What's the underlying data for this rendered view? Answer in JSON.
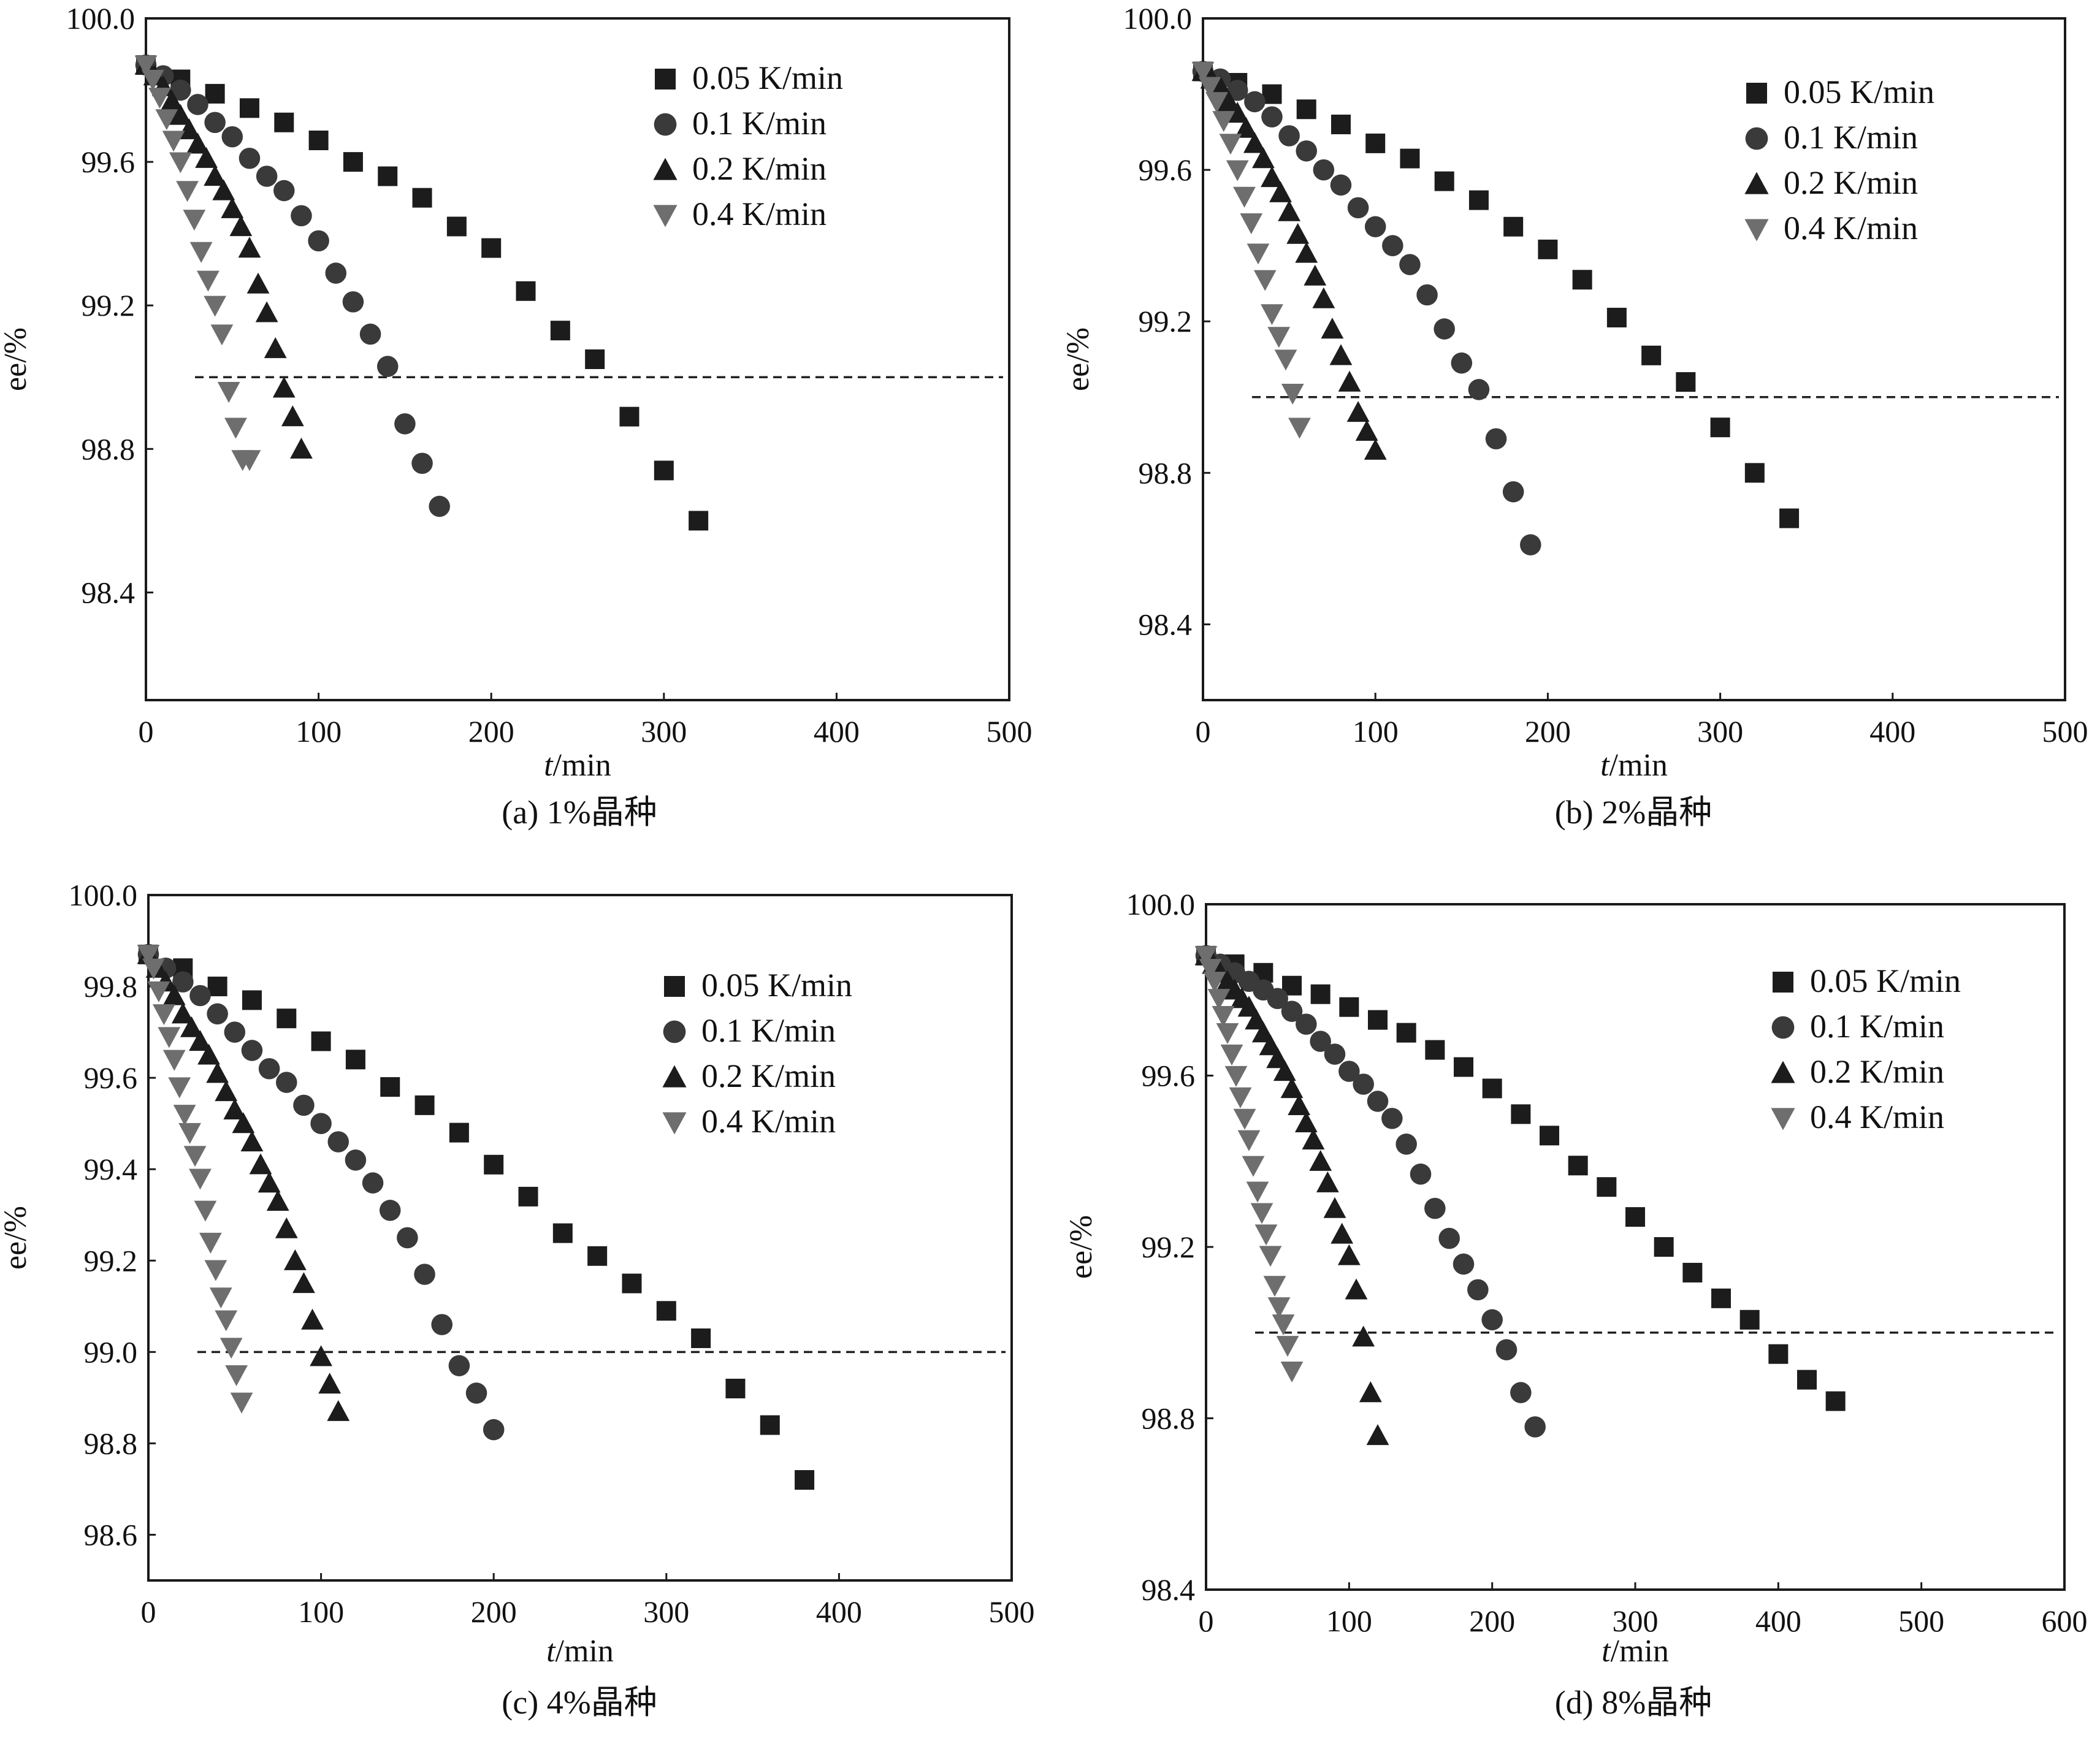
{
  "figure": {
    "xlabel_italic": "t",
    "xlabel_rest": "/min",
    "ylabel": "ee/%",
    "threshold": 99.0,
    "colors": {
      "frame": "#1a1a1a",
      "series": [
        "#1c1c1c",
        "#3a3a3a",
        "#1c1c1c",
        "#6e6e6e"
      ],
      "dashed": "#222222"
    },
    "series_markers": [
      "square-marker",
      "circle-marker",
      "triangle-up-marker",
      "triangle-down-marker"
    ]
  },
  "chart_data": [
    {
      "id": "a",
      "type": "scatter",
      "caption": "(a) 1%晶种",
      "xlabel": "t/min",
      "ylabel": "ee/%",
      "xlim": [
        0,
        500
      ],
      "ylim": [
        98.1,
        100.0
      ],
      "xticks": [
        0,
        100,
        200,
        300,
        400,
        500
      ],
      "yticks": [
        98.4,
        98.8,
        99.2,
        99.6,
        100.0
      ],
      "ytick_labels": [
        "98.4",
        "98.8",
        "99.2",
        "99.6",
        "100.0"
      ],
      "hline": 99.0,
      "legend_position": "top-right",
      "series": [
        {
          "name": "0.05 K/min",
          "marker": "square",
          "x": [
            0,
            20,
            40,
            60,
            80,
            100,
            120,
            140,
            160,
            180,
            200,
            220,
            240,
            260,
            280,
            300,
            320
          ],
          "y": [
            99.87,
            99.83,
            99.79,
            99.75,
            99.71,
            99.66,
            99.6,
            99.56,
            99.5,
            99.42,
            99.36,
            99.24,
            99.13,
            99.05,
            98.89,
            98.74,
            98.6
          ]
        },
        {
          "name": "0.1 K/min",
          "marker": "circle",
          "x": [
            0,
            10,
            20,
            30,
            40,
            50,
            60,
            70,
            80,
            90,
            100,
            110,
            120,
            130,
            140,
            150,
            160,
            170
          ],
          "y": [
            99.87,
            99.84,
            99.8,
            99.76,
            99.71,
            99.67,
            99.61,
            99.56,
            99.52,
            99.45,
            99.38,
            99.29,
            99.21,
            99.12,
            99.03,
            98.87,
            98.76,
            98.64
          ]
        },
        {
          "name": "0.2 K/min",
          "marker": "triangle-up",
          "x": [
            0,
            5,
            10,
            15,
            20,
            25,
            30,
            35,
            40,
            45,
            50,
            55,
            60,
            65,
            70,
            75,
            80,
            85,
            90
          ],
          "y": [
            99.87,
            99.84,
            99.81,
            99.77,
            99.73,
            99.69,
            99.65,
            99.61,
            99.56,
            99.52,
            99.47,
            99.42,
            99.36,
            99.26,
            99.18,
            99.08,
            98.97,
            98.89,
            98.8
          ]
        },
        {
          "name": "0.4 K/min",
          "marker": "triangle-down",
          "x": [
            0,
            4,
            8,
            12,
            16,
            20,
            24,
            28,
            32,
            36,
            40,
            44,
            48,
            52,
            56,
            60
          ],
          "y": [
            99.87,
            99.83,
            99.78,
            99.72,
            99.66,
            99.6,
            99.52,
            99.44,
            99.35,
            99.27,
            99.2,
            99.12,
            98.96,
            98.86,
            98.77,
            98.77
          ]
        }
      ]
    },
    {
      "id": "b",
      "type": "scatter",
      "caption": "(b) 2%晶种",
      "xlabel": "t/min",
      "ylabel": "ee/%",
      "xlim": [
        0,
        500
      ],
      "ylim": [
        98.2,
        100.0
      ],
      "xticks": [
        0,
        100,
        200,
        300,
        400,
        500
      ],
      "yticks": [
        98.4,
        98.8,
        99.2,
        99.6,
        100.0
      ],
      "ytick_labels": [
        "98.4",
        "98.8",
        "99.2",
        "99.6",
        "100.0"
      ],
      "hline": 99.0,
      "legend_position": "top-right",
      "series": [
        {
          "name": "0.05 K/min",
          "marker": "square",
          "x": [
            0,
            20,
            40,
            60,
            80,
            100,
            120,
            140,
            160,
            180,
            200,
            220,
            240,
            260,
            280,
            300,
            320,
            340
          ],
          "y": [
            99.86,
            99.83,
            99.8,
            99.76,
            99.72,
            99.67,
            99.63,
            99.57,
            99.52,
            99.45,
            99.39,
            99.31,
            99.21,
            99.11,
            99.04,
            98.92,
            98.8,
            98.68
          ]
        },
        {
          "name": "0.1 K/min",
          "marker": "circle",
          "x": [
            0,
            10,
            20,
            30,
            40,
            50,
            60,
            70,
            80,
            90,
            100,
            110,
            120,
            130,
            140,
            150,
            160,
            170,
            180,
            190
          ],
          "y": [
            99.86,
            99.84,
            99.81,
            99.78,
            99.74,
            99.69,
            99.65,
            99.6,
            99.56,
            99.5,
            99.45,
            99.4,
            99.35,
            99.27,
            99.18,
            99.09,
            99.02,
            98.89,
            98.75,
            98.61
          ]
        },
        {
          "name": "0.2 K/min",
          "marker": "triangle-up",
          "x": [
            0,
            5,
            10,
            15,
            20,
            25,
            30,
            35,
            40,
            45,
            50,
            55,
            60,
            65,
            70,
            75,
            80,
            85,
            90,
            95,
            100
          ],
          "y": [
            99.86,
            99.84,
            99.82,
            99.78,
            99.75,
            99.71,
            99.67,
            99.63,
            99.58,
            99.54,
            99.49,
            99.43,
            99.38,
            99.32,
            99.26,
            99.18,
            99.11,
            99.04,
            98.96,
            98.91,
            98.86
          ]
        },
        {
          "name": "0.4 K/min",
          "marker": "triangle-down",
          "x": [
            0,
            4,
            8,
            12,
            16,
            20,
            24,
            28,
            32,
            36,
            40,
            44,
            48,
            52,
            56
          ],
          "y": [
            99.86,
            99.82,
            99.78,
            99.73,
            99.67,
            99.6,
            99.53,
            99.46,
            99.38,
            99.31,
            99.22,
            99.16,
            99.1,
            99.01,
            98.92
          ]
        }
      ]
    },
    {
      "id": "c",
      "type": "scatter",
      "caption": "(c) 4%晶种",
      "xlabel": "t/min",
      "ylabel": "ee/%",
      "xlim": [
        0,
        500
      ],
      "ylim": [
        98.5,
        100.0
      ],
      "xticks": [
        0,
        100,
        200,
        300,
        400,
        500
      ],
      "yticks": [
        98.6,
        98.8,
        99.0,
        99.2,
        99.4,
        99.6,
        99.8,
        100.0
      ],
      "ytick_labels": [
        "98.6",
        "98.8",
        "99.0",
        "99.2",
        "99.4",
        "99.6",
        "99.8",
        "100.0"
      ],
      "hline": 99.0,
      "legend_position": "top-right",
      "series": [
        {
          "name": "0.05 K/min",
          "marker": "square",
          "x": [
            0,
            20,
            40,
            60,
            80,
            100,
            120,
            140,
            160,
            180,
            200,
            220,
            240,
            260,
            280,
            300,
            320,
            340,
            360,
            380
          ],
          "y": [
            99.87,
            99.84,
            99.8,
            99.77,
            99.73,
            99.68,
            99.64,
            99.58,
            99.54,
            99.48,
            99.41,
            99.34,
            99.26,
            99.21,
            99.15,
            99.09,
            99.03,
            98.92,
            98.84,
            98.72
          ]
        },
        {
          "name": "0.1 K/min",
          "marker": "circle",
          "x": [
            0,
            10,
            20,
            30,
            40,
            50,
            60,
            70,
            80,
            90,
            100,
            110,
            120,
            130,
            140,
            150,
            160,
            170,
            180,
            190,
            200
          ],
          "y": [
            99.87,
            99.84,
            99.81,
            99.78,
            99.74,
            99.7,
            99.66,
            99.62,
            99.59,
            99.54,
            99.5,
            99.46,
            99.42,
            99.37,
            99.31,
            99.25,
            99.17,
            99.06,
            98.97,
            98.91,
            98.83
          ]
        },
        {
          "name": "0.2 K/min",
          "marker": "triangle-up",
          "x": [
            0,
            5,
            10,
            15,
            20,
            25,
            30,
            35,
            40,
            45,
            50,
            55,
            60,
            65,
            70,
            75,
            80,
            85,
            90,
            95,
            100,
            105,
            110
          ],
          "y": [
            99.87,
            99.84,
            99.81,
            99.78,
            99.74,
            99.71,
            99.68,
            99.65,
            99.61,
            99.57,
            99.53,
            99.5,
            99.46,
            99.41,
            99.37,
            99.33,
            99.27,
            99.2,
            99.15,
            99.07,
            98.99,
            98.93,
            98.87
          ]
        },
        {
          "name": "0.4 K/min",
          "marker": "triangle-down",
          "x": [
            0,
            3,
            6,
            9,
            12,
            15,
            18,
            21,
            24,
            27,
            30,
            33,
            36,
            39,
            42,
            45,
            48,
            51,
            54
          ],
          "y": [
            99.87,
            99.84,
            99.79,
            99.74,
            99.69,
            99.64,
            99.58,
            99.52,
            99.48,
            99.43,
            99.38,
            99.31,
            99.24,
            99.18,
            99.12,
            99.07,
            99.01,
            98.95,
            98.89
          ]
        }
      ]
    },
    {
      "id": "d",
      "type": "scatter",
      "caption": "(d) 8%晶种",
      "xlabel": "t/min",
      "ylabel": "ee/%",
      "xlim": [
        0,
        600
      ],
      "ylim": [
        98.4,
        100.0
      ],
      "xticks": [
        0,
        100,
        200,
        300,
        400,
        500,
        600
      ],
      "yticks": [
        98.4,
        98.8,
        99.2,
        99.6,
        100.0
      ],
      "ytick_labels": [
        "98.4",
        "98.8",
        "99.2",
        "99.6",
        "100.0"
      ],
      "hline": 99.0,
      "legend_position": "top-right",
      "series": [
        {
          "name": "0.05 K/min",
          "marker": "square",
          "x": [
            0,
            20,
            40,
            60,
            80,
            100,
            120,
            140,
            160,
            180,
            200,
            220,
            240,
            260,
            280,
            300,
            320,
            340,
            360,
            380,
            400,
            420,
            440
          ],
          "y": [
            99.88,
            99.86,
            99.84,
            99.81,
            99.79,
            99.76,
            99.73,
            99.7,
            99.66,
            99.62,
            99.57,
            99.51,
            99.46,
            99.39,
            99.34,
            99.27,
            99.2,
            99.14,
            99.08,
            99.03,
            98.95,
            98.89,
            98.84
          ]
        },
        {
          "name": "0.1 K/min",
          "marker": "circle",
          "x": [
            0,
            10,
            20,
            30,
            40,
            50,
            60,
            70,
            80,
            90,
            100,
            110,
            120,
            130,
            140,
            150,
            160,
            170,
            180,
            190,
            200,
            210,
            220,
            230
          ],
          "y": [
            99.88,
            99.86,
            99.84,
            99.82,
            99.8,
            99.78,
            99.75,
            99.72,
            99.68,
            99.65,
            99.61,
            99.58,
            99.54,
            99.5,
            99.44,
            99.37,
            99.29,
            99.22,
            99.16,
            99.1,
            99.03,
            98.96,
            98.86,
            98.78
          ]
        },
        {
          "name": "0.2 K/min",
          "marker": "triangle-up",
          "x": [
            0,
            5,
            10,
            15,
            20,
            25,
            30,
            35,
            40,
            45,
            50,
            55,
            60,
            65,
            70,
            75,
            80,
            85,
            90,
            95,
            100,
            105,
            110,
            115,
            120
          ],
          "y": [
            99.88,
            99.86,
            99.84,
            99.82,
            99.8,
            99.78,
            99.76,
            99.73,
            99.7,
            99.67,
            99.64,
            99.61,
            99.57,
            99.53,
            99.49,
            99.45,
            99.4,
            99.35,
            99.29,
            99.23,
            99.18,
            99.1,
            98.99,
            98.86,
            98.76
          ]
        },
        {
          "name": "0.4 K/min",
          "marker": "triangle-down",
          "x": [
            0,
            3,
            6,
            9,
            12,
            15,
            18,
            21,
            24,
            27,
            30,
            33,
            36,
            39,
            42,
            45,
            48,
            51,
            54,
            57,
            60
          ],
          "y": [
            99.88,
            99.85,
            99.82,
            99.78,
            99.74,
            99.7,
            99.65,
            99.6,
            99.55,
            99.5,
            99.45,
            99.39,
            99.33,
            99.28,
            99.23,
            99.18,
            99.11,
            99.06,
            99.02,
            98.97,
            98.91
          ]
        }
      ]
    }
  ]
}
